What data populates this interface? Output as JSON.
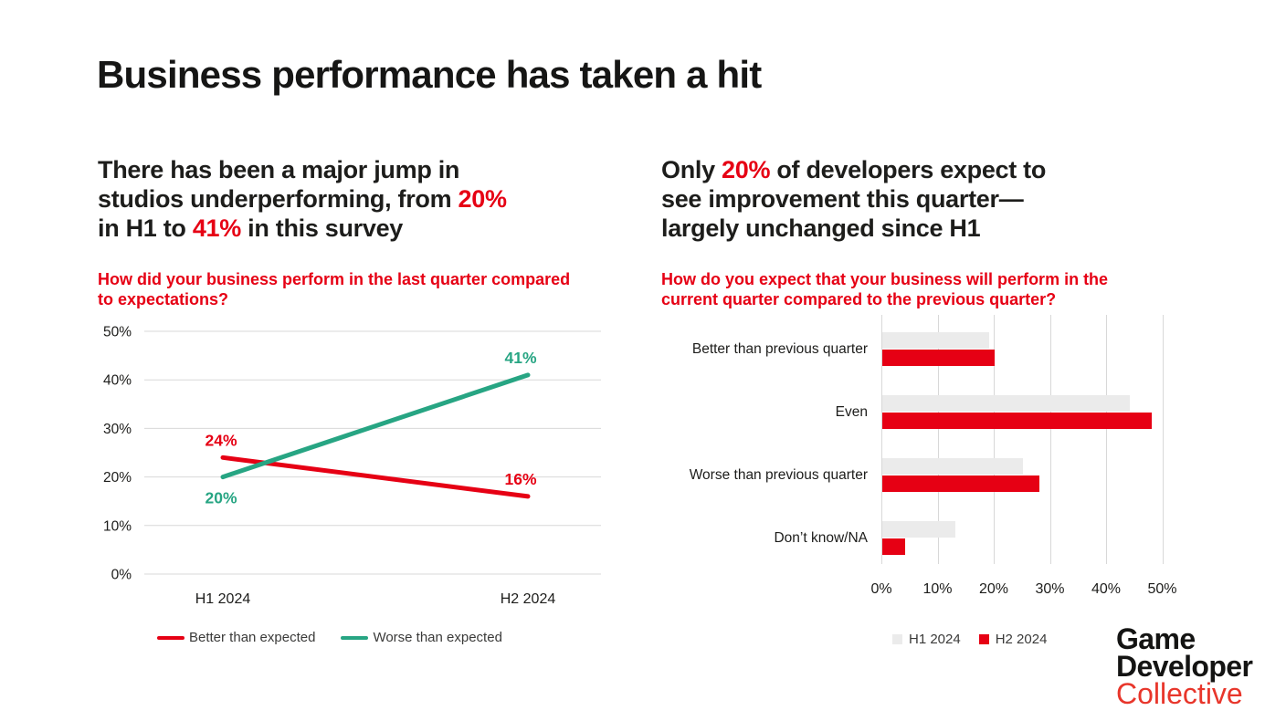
{
  "slide": {
    "title": "Business performance has taken a hit"
  },
  "colors": {
    "red": "#e60014",
    "teal": "#27a583",
    "gray_bar": "#ebebeb",
    "gridline": "#d8d8d8",
    "text": "#1d1d1b",
    "logo_red": "#e8362b"
  },
  "left": {
    "heading_lines": [
      [
        {
          "t": "There has been a major jump in"
        }
      ],
      [
        {
          "t": "studios underperforming, from "
        },
        {
          "t": "20%",
          "red": true
        }
      ],
      [
        {
          "t": "in H1 to "
        },
        {
          "t": "41%",
          "red": true
        },
        {
          "t": " in this survey"
        }
      ]
    ],
    "question_lines": [
      "How did your business perform in the last quarter compared",
      "to expectations?"
    ]
  },
  "right": {
    "heading_lines": [
      [
        {
          "t": "Only "
        },
        {
          "t": "20%",
          "red": true
        },
        {
          "t": " of developers expect to"
        }
      ],
      [
        {
          "t": "see improvement this quarter—"
        }
      ],
      [
        {
          "t": "largely unchanged since H1"
        }
      ]
    ],
    "question_lines": [
      "How do you expect that your business will perform in the",
      "current quarter compared to the previous quarter?"
    ]
  },
  "logo": {
    "line1": "Game",
    "line2": "Developer",
    "line3": "Collective"
  },
  "chart_data": [
    {
      "type": "line",
      "title": "How did your business perform in the last quarter compared to expectations?",
      "x": [
        "H1 2024",
        "H2 2024"
      ],
      "series": [
        {
          "name": "Better than expected",
          "color_key": "red",
          "values": [
            24,
            16
          ],
          "label_pos": [
            "above",
            "above"
          ]
        },
        {
          "name": "Worse than expected",
          "color_key": "teal",
          "values": [
            20,
            41
          ],
          "label_pos": [
            "below",
            "above"
          ]
        }
      ],
      "ylim": [
        0,
        50
      ],
      "yticks": [
        0,
        10,
        20,
        30,
        40,
        50
      ],
      "ytick_suffix": "%",
      "grid": "horizontal",
      "legend_position": "bottom",
      "data_labels": "percent"
    },
    {
      "type": "bar",
      "orientation": "horizontal",
      "title": "How do you expect that your business will perform in the current quarter compared to the previous quarter?",
      "categories": [
        "Better than previous quarter",
        "Even",
        "Worse than previous quarter",
        "Don’t know/NA"
      ],
      "series": [
        {
          "name": "H1 2024",
          "color_key": "gray",
          "values": [
            19,
            44,
            25,
            13
          ]
        },
        {
          "name": "H2 2024",
          "color_key": "red",
          "values": [
            20,
            48,
            28,
            4
          ]
        }
      ],
      "xlim": [
        0,
        50
      ],
      "xticks": [
        0,
        10,
        20,
        30,
        40,
        50
      ],
      "xtick_suffix": "%",
      "grid": "vertical",
      "legend_position": "bottom"
    }
  ]
}
